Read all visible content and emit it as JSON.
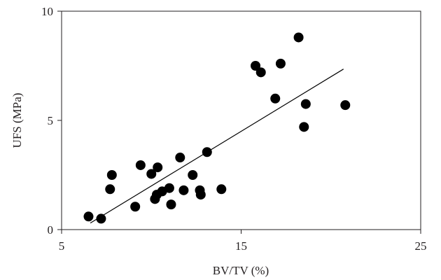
{
  "chart_data": {
    "type": "scatter",
    "title": "",
    "xlabel": "BV/TV (%)",
    "ylabel": "UFS (MPa)",
    "xlim": [
      5,
      25
    ],
    "ylim": [
      0,
      10
    ],
    "x_ticks": [
      5,
      15,
      25
    ],
    "y_ticks": [
      0,
      5,
      10
    ],
    "x_tick_labels": [
      "5",
      "15",
      "25"
    ],
    "y_tick_labels": [
      "0",
      "5",
      "10"
    ],
    "grid": false,
    "legend": "none",
    "marker_color": "#000000",
    "points": [
      {
        "x": 6.5,
        "y": 0.6
      },
      {
        "x": 7.2,
        "y": 0.5
      },
      {
        "x": 7.7,
        "y": 1.85
      },
      {
        "x": 7.8,
        "y": 2.5
      },
      {
        "x": 9.1,
        "y": 1.05
      },
      {
        "x": 9.4,
        "y": 2.95
      },
      {
        "x": 10.0,
        "y": 2.55
      },
      {
        "x": 10.2,
        "y": 1.4
      },
      {
        "x": 10.3,
        "y": 1.6
      },
      {
        "x": 10.35,
        "y": 2.85
      },
      {
        "x": 10.6,
        "y": 1.75
      },
      {
        "x": 11.0,
        "y": 1.9
      },
      {
        "x": 11.1,
        "y": 1.15
      },
      {
        "x": 11.6,
        "y": 3.3
      },
      {
        "x": 11.8,
        "y": 1.8
      },
      {
        "x": 12.3,
        "y": 2.5
      },
      {
        "x": 12.7,
        "y": 1.8
      },
      {
        "x": 12.75,
        "y": 1.6
      },
      {
        "x": 13.1,
        "y": 3.55
      },
      {
        "x": 13.9,
        "y": 1.85
      },
      {
        "x": 15.8,
        "y": 7.5
      },
      {
        "x": 16.1,
        "y": 7.2
      },
      {
        "x": 16.9,
        "y": 6.0
      },
      {
        "x": 17.2,
        "y": 7.6
      },
      {
        "x": 18.2,
        "y": 8.8
      },
      {
        "x": 18.5,
        "y": 4.7
      },
      {
        "x": 18.6,
        "y": 5.75
      },
      {
        "x": 20.8,
        "y": 5.7
      }
    ],
    "trendline": {
      "x": [
        6.6,
        20.7
      ],
      "y": [
        0.3,
        7.35
      ]
    }
  }
}
